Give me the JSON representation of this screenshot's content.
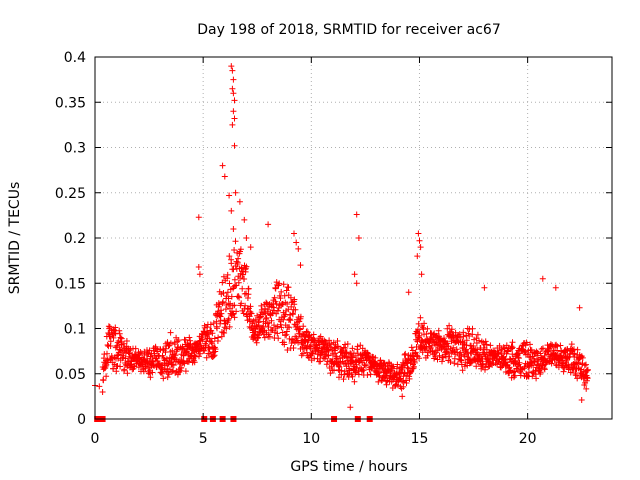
{
  "chart_data": {
    "type": "scatter",
    "title": "Day 198 of 2018, SRMTID for receiver ac67",
    "xlabel": "GPS time / hours",
    "ylabel": "SRMTID / TECUs",
    "xlim": [
      0,
      23.9
    ],
    "ylim": [
      0,
      0.4
    ],
    "x_ticks": [
      0,
      5,
      10,
      15,
      20
    ],
    "x_tick_labels": [
      "0",
      "5",
      "10",
      "15",
      "20"
    ],
    "y_ticks": [
      0,
      0.05,
      0.1,
      0.15,
      0.2,
      0.25,
      0.3,
      0.35,
      0.4
    ],
    "y_tick_labels": [
      "0",
      "0.05",
      "0.1",
      "0.15",
      "0.2",
      "0.25",
      "0.3",
      "0.35",
      "0.4"
    ],
    "grid": true,
    "marker_color": "#ff0000",
    "series": [
      {
        "name": "SRMTID",
        "marker": "plus",
        "baseline_profile": [
          [
            0.0,
            0.04
          ],
          [
            0.4,
            0.05
          ],
          [
            0.6,
            0.08
          ],
          [
            1.0,
            0.08
          ],
          [
            1.5,
            0.07
          ],
          [
            2.0,
            0.065
          ],
          [
            2.5,
            0.06
          ],
          [
            3.0,
            0.065
          ],
          [
            3.5,
            0.07
          ],
          [
            4.0,
            0.07
          ],
          [
            4.5,
            0.075
          ],
          [
            5.0,
            0.085
          ],
          [
            5.5,
            0.09
          ],
          [
            5.9,
            0.12
          ],
          [
            6.2,
            0.14
          ],
          [
            6.6,
            0.16
          ],
          [
            7.0,
            0.14
          ],
          [
            7.3,
            0.09
          ],
          [
            7.8,
            0.11
          ],
          [
            8.3,
            0.12
          ],
          [
            9.0,
            0.11
          ],
          [
            9.5,
            0.09
          ],
          [
            10.0,
            0.08
          ],
          [
            10.5,
            0.075
          ],
          [
            11.0,
            0.07
          ],
          [
            11.5,
            0.06
          ],
          [
            12.0,
            0.06
          ],
          [
            12.5,
            0.065
          ],
          [
            13.0,
            0.055
          ],
          [
            13.5,
            0.05
          ],
          [
            14.0,
            0.05
          ],
          [
            14.5,
            0.055
          ],
          [
            15.0,
            0.09
          ],
          [
            15.5,
            0.085
          ],
          [
            16.0,
            0.08
          ],
          [
            16.5,
            0.08
          ],
          [
            17.0,
            0.075
          ],
          [
            17.5,
            0.08
          ],
          [
            18.0,
            0.07
          ],
          [
            18.5,
            0.07
          ],
          [
            19.0,
            0.065
          ],
          [
            19.5,
            0.065
          ],
          [
            20.0,
            0.065
          ],
          [
            20.5,
            0.06
          ],
          [
            21.0,
            0.07
          ],
          [
            21.5,
            0.07
          ],
          [
            22.0,
            0.065
          ],
          [
            22.5,
            0.055
          ],
          [
            22.8,
            0.05
          ]
        ],
        "outliers": [
          [
            0.0,
            0.037
          ],
          [
            0.2,
            0.036
          ],
          [
            4.8,
            0.223
          ],
          [
            4.8,
            0.168
          ],
          [
            4.85,
            0.16
          ],
          [
            5.9,
            0.28
          ],
          [
            6.0,
            0.268
          ],
          [
            6.2,
            0.247
          ],
          [
            6.3,
            0.23
          ],
          [
            6.4,
            0.21
          ],
          [
            6.5,
            0.25
          ],
          [
            6.3,
            0.39
          ],
          [
            6.35,
            0.385
          ],
          [
            6.4,
            0.375
          ],
          [
            6.35,
            0.365
          ],
          [
            6.4,
            0.36
          ],
          [
            6.45,
            0.352
          ],
          [
            6.4,
            0.34
          ],
          [
            6.45,
            0.332
          ],
          [
            6.35,
            0.325
          ],
          [
            6.45,
            0.302
          ],
          [
            6.7,
            0.24
          ],
          [
            6.9,
            0.22
          ],
          [
            7.0,
            0.2
          ],
          [
            7.2,
            0.19
          ],
          [
            8.0,
            0.215
          ],
          [
            9.2,
            0.205
          ],
          [
            9.3,
            0.195
          ],
          [
            9.4,
            0.188
          ],
          [
            9.5,
            0.17
          ],
          [
            12.1,
            0.226
          ],
          [
            12.2,
            0.2
          ],
          [
            12.0,
            0.16
          ],
          [
            12.1,
            0.15
          ],
          [
            14.95,
            0.205
          ],
          [
            15.0,
            0.197
          ],
          [
            15.05,
            0.19
          ],
          [
            14.9,
            0.18
          ],
          [
            15.1,
            0.16
          ],
          [
            14.5,
            0.14
          ],
          [
            18.0,
            0.145
          ],
          [
            20.7,
            0.155
          ],
          [
            21.3,
            0.145
          ],
          [
            22.4,
            0.123
          ],
          [
            22.5,
            0.021
          ],
          [
            11.8,
            0.013
          ],
          [
            14.2,
            0.025
          ]
        ]
      }
    ],
    "zero_markers_x": [
      0.1,
      0.35,
      5.05,
      5.45,
      5.9,
      6.4,
      11.05,
      12.15,
      12.7
    ]
  }
}
